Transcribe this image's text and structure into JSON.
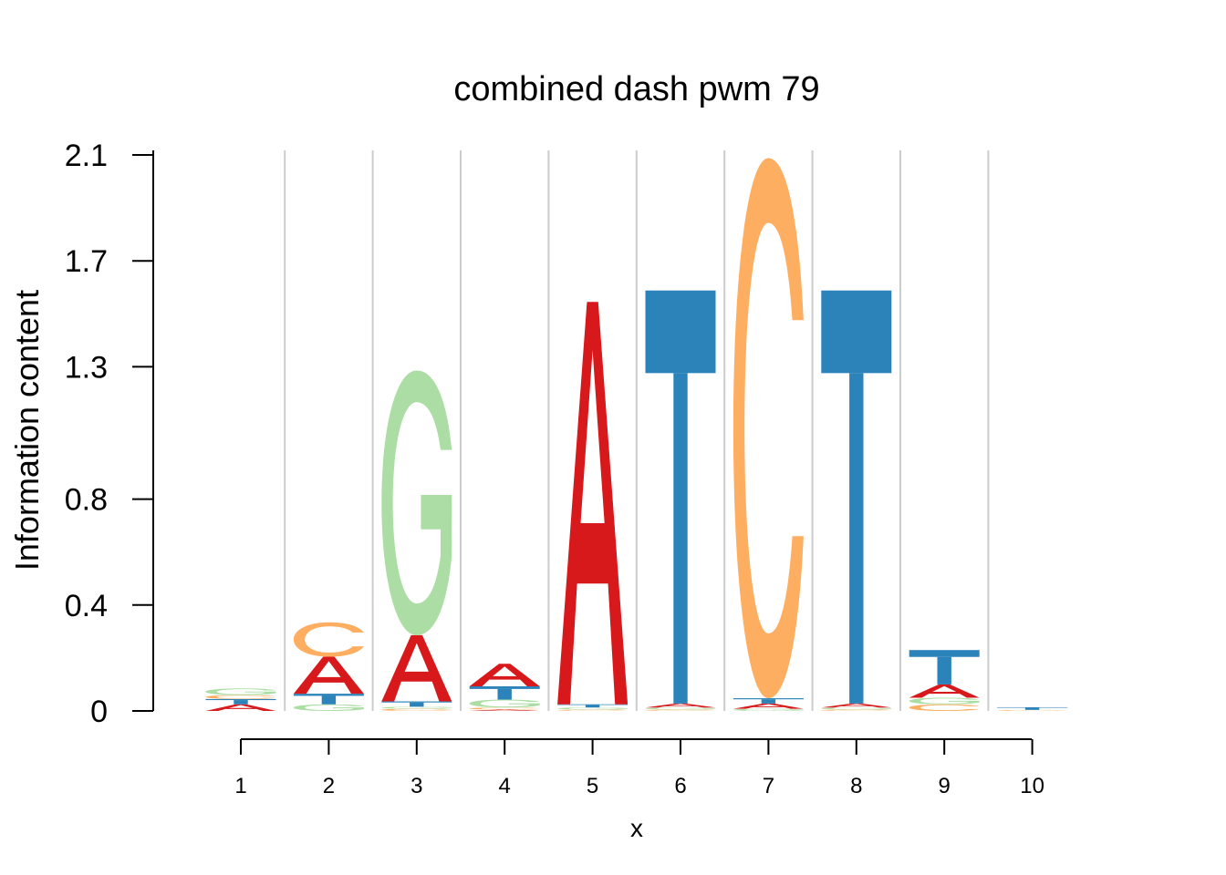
{
  "chart_data": {
    "type": "sequence-logo",
    "title": "combined dash pwm 79",
    "xlabel": "x",
    "ylabel": "Information content",
    "ylim": [
      0,
      2.1
    ],
    "yticks": [
      {
        "value": 0,
        "label": "0"
      },
      {
        "value": 0.4,
        "label": "0.4"
      },
      {
        "value": 0.8,
        "label": "0.8"
      },
      {
        "value": 1.3,
        "label": "1.3"
      },
      {
        "value": 1.7,
        "label": "1.7"
      },
      {
        "value": 2.1,
        "label": "2.1"
      }
    ],
    "positions": [
      "1",
      "2",
      "3",
      "4",
      "5",
      "6",
      "7",
      "8",
      "9",
      "10"
    ],
    "grid": "vertical separators",
    "colors": {
      "A": "#d7191c",
      "C": "#fdae61",
      "G": "#abdda4",
      "T": "#2b83ba"
    },
    "stacks": [
      [
        {
          "l": "A",
          "v": 0.025
        },
        {
          "l": "T",
          "v": 0.02
        },
        {
          "l": "C",
          "v": 0.015
        },
        {
          "l": "G",
          "v": 0.025
        }
      ],
      [
        {
          "l": "G",
          "v": 0.025
        },
        {
          "l": "T",
          "v": 0.04
        },
        {
          "l": "A",
          "v": 0.14
        },
        {
          "l": "C",
          "v": 0.13
        }
      ],
      [
        {
          "l": "C",
          "v": 0.008
        },
        {
          "l": "G",
          "v": 0.008
        },
        {
          "l": "T",
          "v": 0.02
        },
        {
          "l": "A",
          "v": 0.25
        },
        {
          "l": "G",
          "v": 1.0
        }
      ],
      [
        {
          "l": "A",
          "v": 0.005
        },
        {
          "l": "C",
          "v": 0.008
        },
        {
          "l": "G",
          "v": 0.03
        },
        {
          "l": "T",
          "v": 0.05
        },
        {
          "l": "A",
          "v": 0.085
        }
      ],
      [
        {
          "l": "C",
          "v": 0.005
        },
        {
          "l": "G",
          "v": 0.008
        },
        {
          "l": "T",
          "v": 0.012
        },
        {
          "l": "A",
          "v": 1.52
        }
      ],
      [
        {
          "l": "C",
          "v": 0.005
        },
        {
          "l": "G",
          "v": 0.008
        },
        {
          "l": "A",
          "v": 0.015
        },
        {
          "l": "T",
          "v": 1.56
        }
      ],
      [
        {
          "l": "G",
          "v": 0.008
        },
        {
          "l": "A",
          "v": 0.02
        },
        {
          "l": "T",
          "v": 0.02
        },
        {
          "l": "C",
          "v": 2.04
        }
      ],
      [
        {
          "l": "C",
          "v": 0.005
        },
        {
          "l": "G",
          "v": 0.008
        },
        {
          "l": "A",
          "v": 0.015
        },
        {
          "l": "T",
          "v": 1.56
        }
      ],
      [
        {
          "l": "C",
          "v": 0.025
        },
        {
          "l": "G",
          "v": 0.025
        },
        {
          "l": "A",
          "v": 0.05
        },
        {
          "l": "T",
          "v": 0.13
        }
      ],
      [
        {
          "l": "C",
          "v": 0.004
        },
        {
          "l": "T",
          "v": 0.01
        }
      ]
    ]
  }
}
